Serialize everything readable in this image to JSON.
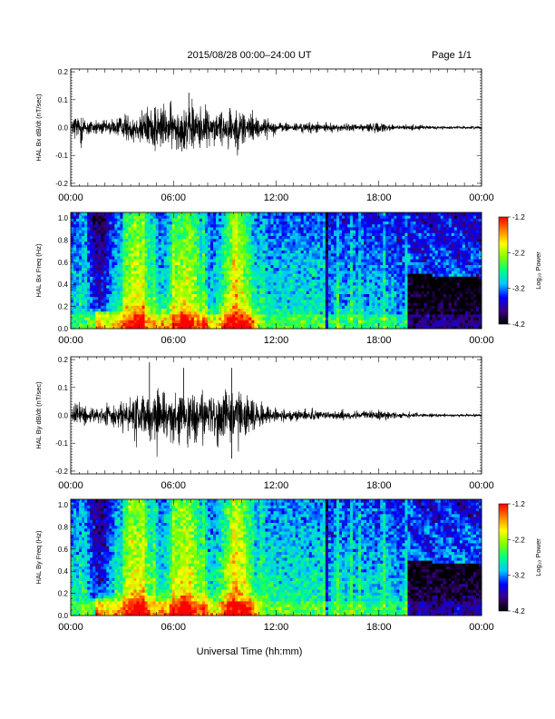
{
  "header": {
    "date_range": "2015/08/28  00:00–24:00 UT",
    "page": "Page 1/1"
  },
  "x_axis": {
    "label": "Universal Time (hh:mm)",
    "ticks": [
      "00:00",
      "06:00",
      "12:00",
      "18:00",
      "00:00"
    ]
  },
  "colorbar": {
    "label": "Log₁₀ Power",
    "ticks": [
      "-1.2",
      "-2.2",
      "-3.2",
      "-4.2"
    ],
    "range": [
      -4.2,
      -1.2
    ],
    "colors": [
      "#000000",
      "#3a0080",
      "#0000ff",
      "#00c8ff",
      "#00ff80",
      "#80ff00",
      "#ffff00",
      "#ff8000",
      "#ff0000"
    ]
  },
  "chart_data": [
    {
      "type": "line",
      "ylabel": "HAL Bx dB/dt (nT/sec)",
      "ylim": [
        -0.21,
        0.21
      ],
      "y_ticks": [
        "0.2",
        "0.1",
        "0.0",
        "-0.1",
        "-0.2"
      ],
      "x_range_hours": [
        0,
        24
      ],
      "envelope": {
        "hours": [
          0,
          0.5,
          1,
          2,
          3,
          4,
          5,
          6,
          7,
          8,
          9,
          10,
          11,
          12,
          13,
          14,
          15,
          16,
          17,
          18,
          19,
          20,
          21,
          22,
          23,
          24
        ],
        "amplitude": [
          0.015,
          0.04,
          0.02,
          0.015,
          0.025,
          0.04,
          0.05,
          0.045,
          0.055,
          0.04,
          0.04,
          0.045,
          0.025,
          0.012,
          0.009,
          0.012,
          0.009,
          0.009,
          0.008,
          0.012,
          0.006,
          0.006,
          0.004,
          0.003,
          0.003,
          0.003
        ]
      },
      "peaks": [
        {
          "hour": 6.9,
          "value": 0.125
        },
        {
          "hour": 6.5,
          "value": -0.085
        },
        {
          "hour": 4.9,
          "value": 0.07
        },
        {
          "hour": 9.3,
          "value": 0.07
        }
      ]
    },
    {
      "type": "heatmap",
      "ylabel": "HAL Bx Freq (Hz)",
      "ylim": [
        0,
        1.05
      ],
      "y_ticks": [
        "1.0",
        "0.8",
        "0.6",
        "0.4",
        "0.2",
        "0.0"
      ],
      "x_range_hours": [
        0,
        24
      ],
      "value_label": "Log₁₀ Power"
    },
    {
      "type": "line",
      "ylabel": "HAL By dB/dt (nT/sec)",
      "ylim": [
        -0.21,
        0.21
      ],
      "y_ticks": [
        "0.2",
        "0.1",
        "0.0",
        "-0.1",
        "-0.2"
      ],
      "x_range_hours": [
        0,
        24
      ],
      "envelope": {
        "hours": [
          0,
          0.5,
          1,
          2,
          3,
          4,
          5,
          6,
          7,
          8,
          9,
          10,
          11,
          12,
          13,
          14,
          15,
          16,
          17,
          18,
          19,
          20,
          21,
          22,
          23,
          24
        ],
        "amplitude": [
          0.015,
          0.035,
          0.02,
          0.02,
          0.03,
          0.05,
          0.06,
          0.06,
          0.06,
          0.05,
          0.06,
          0.055,
          0.03,
          0.015,
          0.01,
          0.012,
          0.01,
          0.01,
          0.008,
          0.012,
          0.006,
          0.005,
          0.004,
          0.003,
          0.003,
          0.003
        ]
      },
      "peaks": [
        {
          "hour": 4.6,
          "value": 0.19
        },
        {
          "hour": 9.4,
          "value": -0.155
        },
        {
          "hour": 9.4,
          "value": 0.17
        },
        {
          "hour": 6.6,
          "value": 0.17
        }
      ]
    },
    {
      "type": "heatmap",
      "ylabel": "HAL By Freq (Hz)",
      "ylim": [
        0,
        1.05
      ],
      "y_ticks": [
        "1.0",
        "0.8",
        "0.6",
        "0.4",
        "0.2",
        "0.0"
      ],
      "x_range_hours": [
        0,
        24
      ],
      "value_label": "Log₁₀ Power"
    }
  ]
}
